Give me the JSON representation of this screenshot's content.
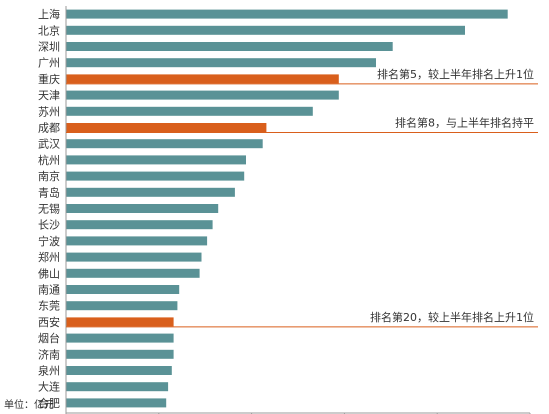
{
  "chart_data": {
    "type": "bar",
    "orientation": "horizontal",
    "unit_label": "单位：亿元",
    "categories": [
      "上海",
      "北京",
      "深圳",
      "广州",
      "重庆",
      "天津",
      "苏州",
      "成都",
      "武汉",
      "杭州",
      "南京",
      "青岛",
      "无锡",
      "长沙",
      "宁波",
      "郑州",
      "佛山",
      "南通",
      "东莞",
      "西安",
      "烟台",
      "济南",
      "泉州",
      "大连",
      "合肥"
    ],
    "values": [
      23800,
      21500,
      17600,
      16700,
      14700,
      14700,
      13300,
      10800,
      10600,
      9700,
      9600,
      9100,
      8200,
      7900,
      7600,
      7300,
      7200,
      6100,
      6000,
      5800,
      5800,
      5800,
      5700,
      5500,
      5400
    ],
    "highlight": [
      "重庆",
      "成都",
      "西安"
    ],
    "xlim": [
      0,
      25000
    ],
    "xticks": [
      "0",
      "5000",
      "10000",
      "15000",
      "20000",
      "25000"
    ],
    "annotations": [
      {
        "category": "重庆",
        "text": "排名第5，较上半年排名上升1位"
      },
      {
        "category": "成都",
        "text": "排名第8，与上半年排名持平"
      },
      {
        "category": "西安",
        "text": "排名第20，较上半年排名上升1位"
      }
    ],
    "colors": {
      "bar": "#5a9296",
      "highlight": "#d95f1c",
      "axis": "#9a9a9a",
      "annotation_line": "#d95f1c"
    },
    "grid": false,
    "legend": "none"
  }
}
